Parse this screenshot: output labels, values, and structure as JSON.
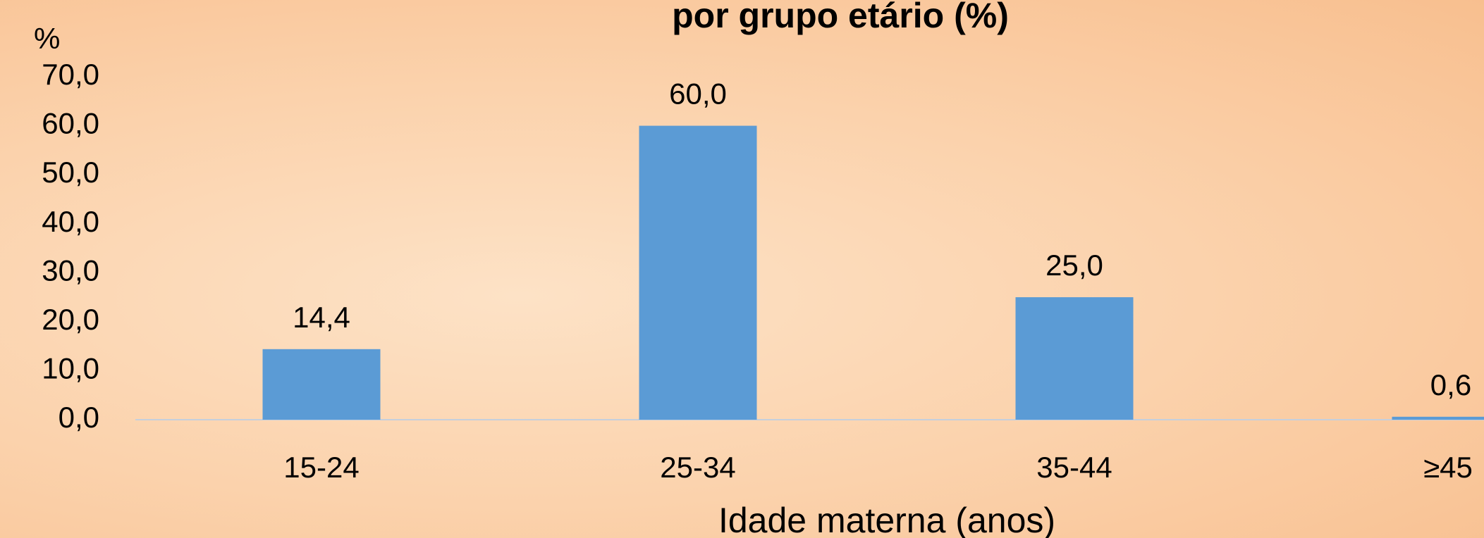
{
  "chart_data": {
    "type": "bar",
    "title": "por grupo etário (%)",
    "y_label": "%",
    "x_label": "Idade materna (anos)",
    "categories": [
      "15-24",
      "25-34",
      "35-44",
      "≥45"
    ],
    "values": [
      14.4,
      60.0,
      25.0,
      0.6
    ],
    "value_labels": [
      "14,4",
      "60,0",
      "25,0",
      "0,6"
    ],
    "color": "#5b9bd5",
    "ylim": [
      0,
      70
    ],
    "yticks": [
      {
        "value": 0,
        "label": "0,0"
      },
      {
        "value": 10,
        "label": "10,0"
      },
      {
        "value": 20,
        "label": "20,0"
      },
      {
        "value": 30,
        "label": "30,0"
      },
      {
        "value": 40,
        "label": "40,0"
      },
      {
        "value": 50,
        "label": "50,0"
      },
      {
        "value": 60,
        "label": "60,0"
      },
      {
        "value": 70,
        "label": "70,0"
      }
    ],
    "grid": false
  }
}
